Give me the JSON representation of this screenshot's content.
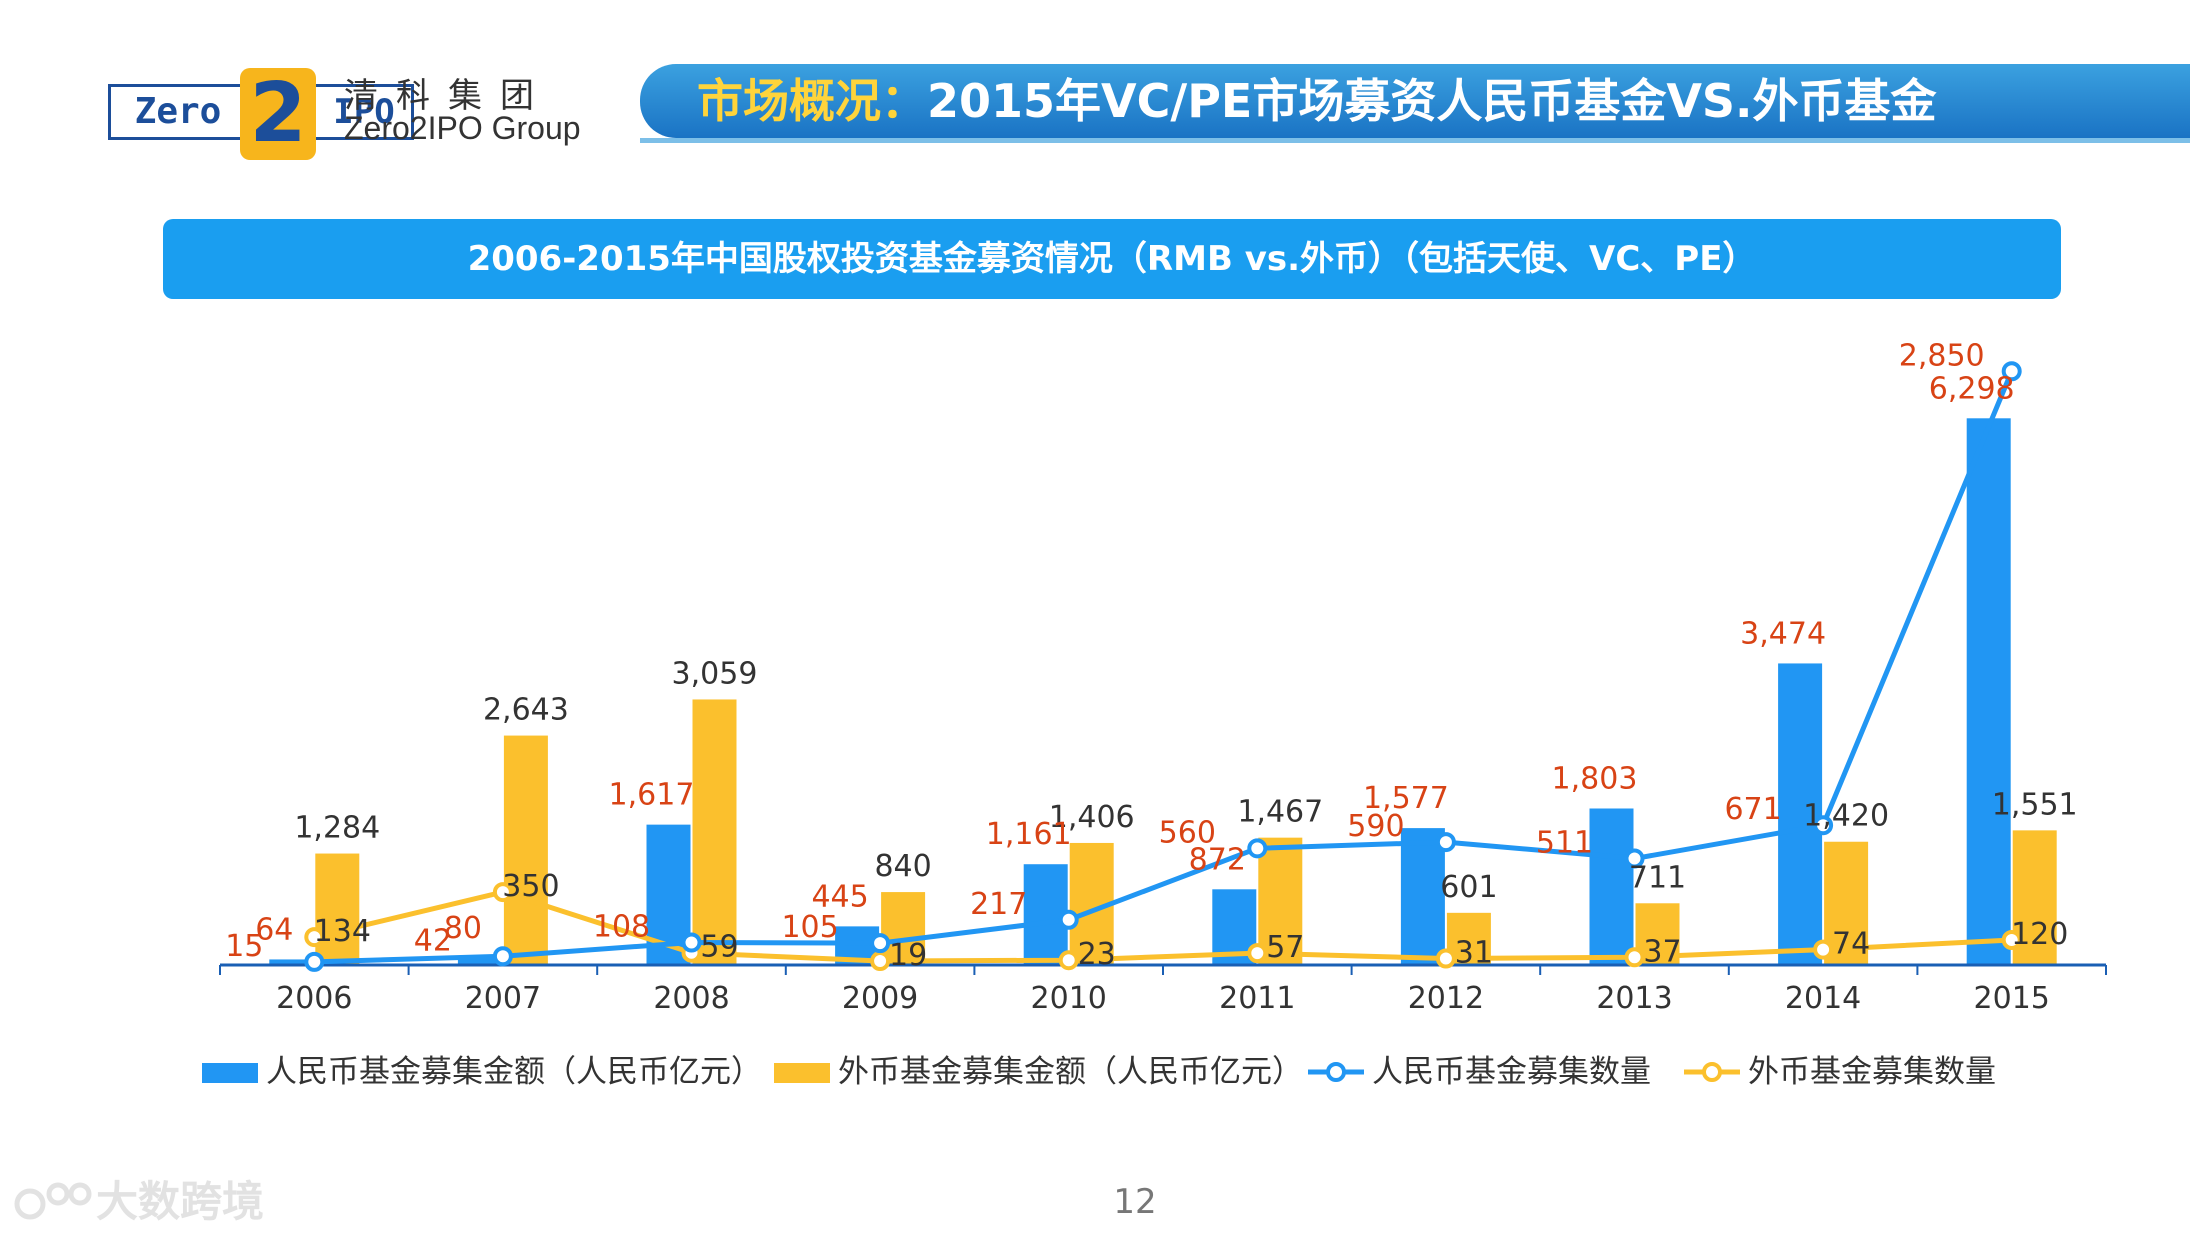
{
  "logo": {
    "zero": "Zero",
    "two": "2",
    "ipo": "IPO",
    "cn_name": "清科集团",
    "en_name": "Zero2IPO Group"
  },
  "header": {
    "title_prefix": "市场概况：",
    "title_main": "2015年VC/PE市场募资人民币基金VS.外币基金"
  },
  "subtitle": "2006-2015年中国股权投资基金募资情况（RMB vs.外币）（包括天使、VC、PE）",
  "colors": {
    "rmb": "#2196f3",
    "foreign": "#fbc02d",
    "label_red": "#d84315",
    "label_dark": "#333333"
  },
  "chart_data": {
    "type": "bar",
    "categories": [
      "2006",
      "2007",
      "2008",
      "2009",
      "2010",
      "2011",
      "2012",
      "2013",
      "2014",
      "2015"
    ],
    "series": [
      {
        "name": "人民币基金募集金额（人民币亿元）",
        "kind": "bar",
        "values": [
          64,
          80,
          1617,
          445,
          1161,
          872,
          1577,
          1803,
          3474,
          6298
        ]
      },
      {
        "name": "外币基金募集金额（人民币亿元）",
        "kind": "bar",
        "values": [
          1284,
          2643,
          3059,
          840,
          1406,
          1467,
          601,
          711,
          1420,
          1551
        ]
      },
      {
        "name": "人民币基金募集数量",
        "kind": "line",
        "values": [
          15,
          42,
          108,
          105,
          217,
          560,
          590,
          511,
          671,
          2850
        ]
      },
      {
        "name": "外币基金募集数量",
        "kind": "line",
        "values": [
          134,
          350,
          59,
          19,
          23,
          57,
          31,
          37,
          74,
          120
        ]
      }
    ],
    "data_labels": [
      [
        "1,284",
        "134",
        "15",
        "64"
      ],
      [
        "2,643",
        "350",
        "42",
        "80"
      ],
      [
        "3,059",
        "1,617",
        "108",
        "59"
      ],
      [
        "840",
        "105",
        "445",
        "19"
      ],
      [
        "1,161",
        "1,406",
        "217",
        "23"
      ],
      [
        "1,467",
        "872",
        "560",
        "57"
      ],
      [
        "1,577",
        "590",
        "601",
        "31"
      ],
      [
        "1,803",
        "511",
        "711",
        "37"
      ],
      [
        "3,474",
        "671",
        "1,420",
        "74"
      ],
      [
        "6,298",
        "2,850",
        "1,551",
        "120"
      ]
    ],
    "ylim": [
      0,
      7200
    ],
    "line_ylim": [
      0,
      3000
    ],
    "legend": "bottom",
    "grid": false
  },
  "page_number": "12",
  "watermark": "大数跨境"
}
